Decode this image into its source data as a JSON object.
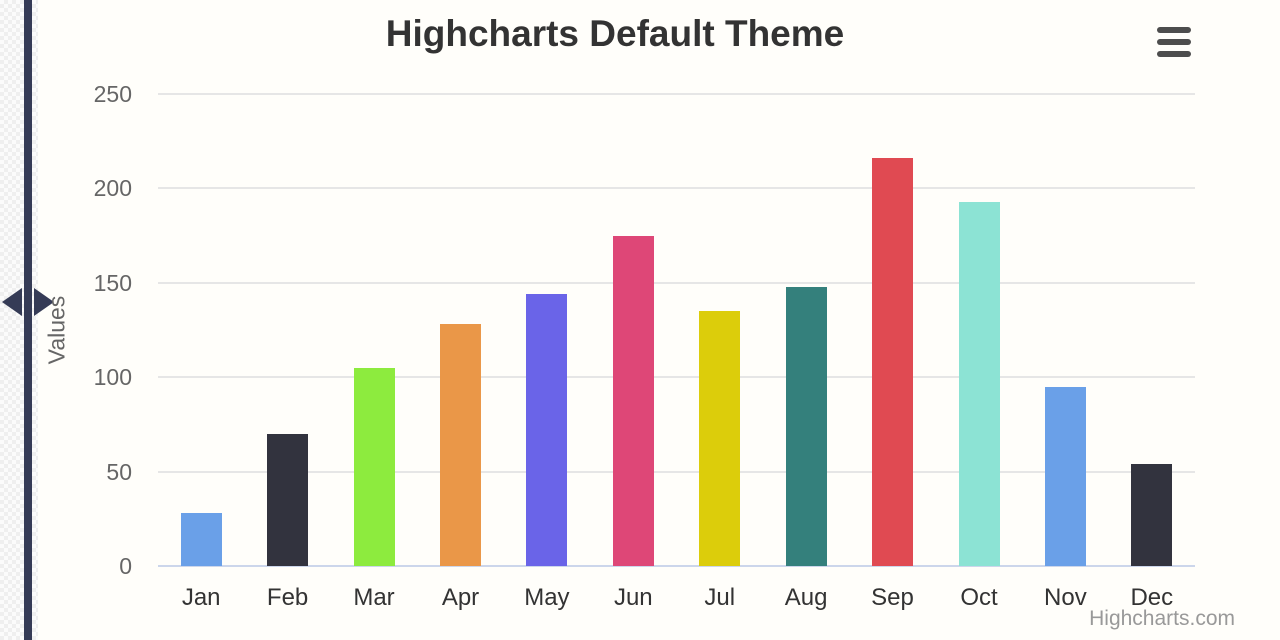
{
  "chart_data": {
    "type": "bar",
    "title": "Highcharts Default Theme",
    "categories": [
      "Jan",
      "Feb",
      "Mar",
      "Apr",
      "May",
      "Jun",
      "Jul",
      "Aug",
      "Sep",
      "Oct",
      "Nov",
      "Dec"
    ],
    "values": [
      28,
      70,
      105,
      128,
      144,
      175,
      135,
      148,
      216,
      193,
      95,
      54
    ],
    "bar_colors": [
      "#6aa0e8",
      "#32333e",
      "#8deb3e",
      "#ea9748",
      "#6a64e8",
      "#de4777",
      "#dccd0b",
      "#34807c",
      "#e04a52",
      "#8ce3d4",
      "#6aa0e8",
      "#32333e"
    ],
    "xlabel": "",
    "ylabel": "Values",
    "yticks": [
      0,
      50,
      100,
      150,
      200,
      250
    ],
    "ylim": [
      0,
      250
    ],
    "grid": true,
    "legend": false,
    "credit": "Highcharts.com"
  },
  "colors": {
    "grid": "#e6e6e6",
    "axis_line": "#ccd6eb",
    "title": "#333333",
    "ytick_label": "#666666",
    "xtick_label": "#333333",
    "credit": "#999999",
    "splitter": "#353b56",
    "menu_icon": "#4d4d4d",
    "background": "#fffefa"
  }
}
